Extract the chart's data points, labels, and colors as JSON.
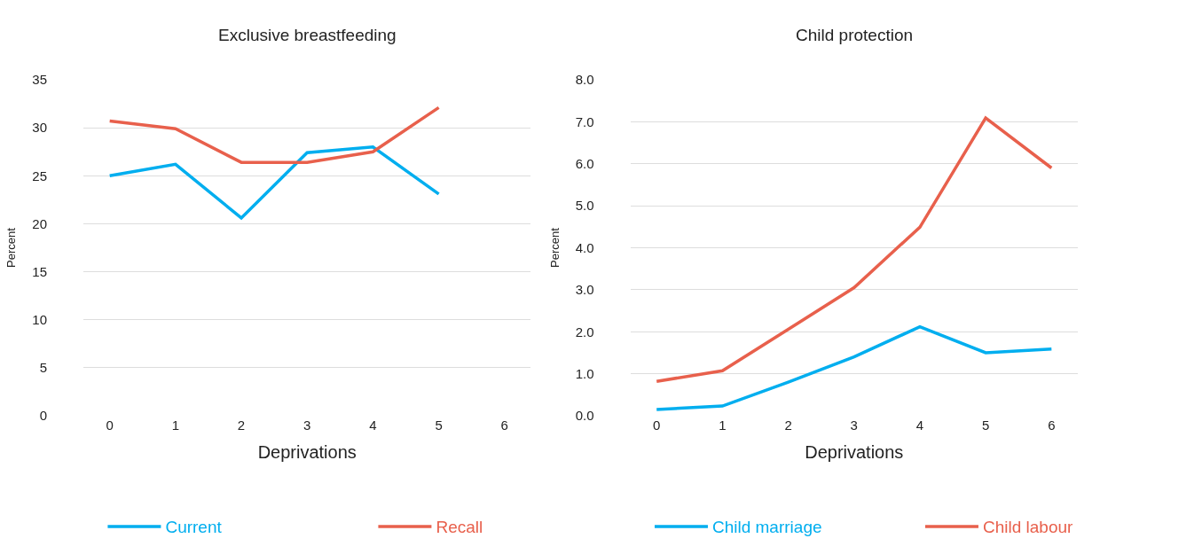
{
  "chart_data": [
    {
      "type": "line",
      "title": "Exclusive breastfeeding",
      "xlabel": "Deprivations",
      "ylabel": "Percent",
      "categories": [
        "0",
        "1",
        "2",
        "3",
        "4",
        "5",
        "6"
      ],
      "ylim": [
        0,
        35
      ],
      "yticks": [
        0,
        5,
        10,
        15,
        20,
        25,
        30,
        35
      ],
      "grid": "y",
      "legend": "bottom",
      "marker": "none",
      "line_style": "solid",
      "series": [
        {
          "name": "Current",
          "color": "#00aeef",
          "values": [
            25.0,
            26.2,
            20.6,
            27.4,
            28.0,
            23.1,
            null
          ]
        },
        {
          "name": "Recall",
          "color": "#e8604c",
          "values": [
            30.7,
            29.9,
            26.4,
            26.4,
            27.5,
            32.1,
            null
          ]
        }
      ]
    },
    {
      "type": "line",
      "title": "Child protection",
      "xlabel": "Deprivations",
      "ylabel": "Percent",
      "categories": [
        "0",
        "1",
        "2",
        "3",
        "4",
        "5",
        "6"
      ],
      "ylim": [
        0,
        8
      ],
      "yticks": [
        {
          "value": 0,
          "label": "0.0"
        },
        {
          "value": 1,
          "label": "1.0"
        },
        {
          "value": 2,
          "label": "2.0"
        },
        {
          "value": 3,
          "label": "3.0"
        },
        {
          "value": 4,
          "label": "4.0"
        },
        {
          "value": 5,
          "label": "5.0"
        },
        {
          "value": 6,
          "label": "6.0"
        },
        {
          "value": 7,
          "label": "7.0"
        },
        {
          "value": 8,
          "label": "8.0"
        }
      ],
      "grid": "y",
      "legend": "bottom",
      "marker": "none",
      "line_style": "solid",
      "series": [
        {
          "name": "Child marriage",
          "color": "#00aeef",
          "values": [
            0.15,
            0.23,
            0.8,
            1.4,
            2.12,
            1.5,
            1.59
          ]
        },
        {
          "name": "Child labour",
          "color": "#e8604c",
          "values": [
            0.82,
            1.07,
            2.06,
            3.05,
            4.49,
            7.09,
            5.9
          ]
        }
      ]
    }
  ]
}
